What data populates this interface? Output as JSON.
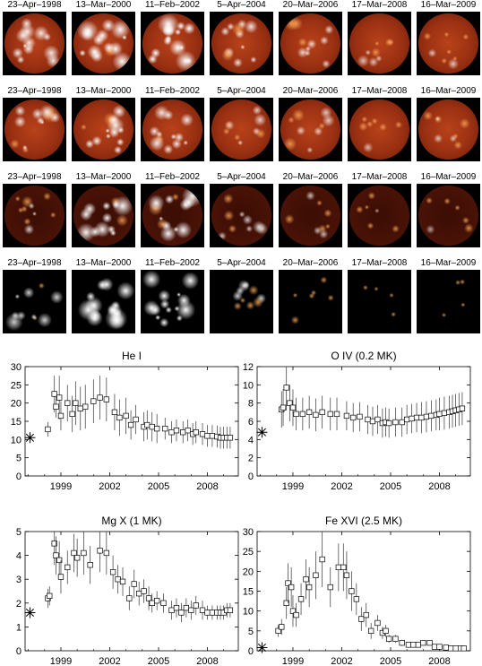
{
  "dates": [
    "23–Apr–1998",
    "13–Mar–2000",
    "11–Feb–2002",
    "5–Apr–2004",
    "20–Mar–2006",
    "17–Mar–2008",
    "16–Mar–2009"
  ],
  "rows": [
    {
      "name": "row-1",
      "style": "disk",
      "activity": [
        0.75,
        0.95,
        1.0,
        0.7,
        0.55,
        0.35,
        0.4
      ]
    },
    {
      "name": "row-2",
      "style": "disk",
      "activity": [
        0.7,
        0.85,
        0.75,
        0.5,
        0.45,
        0.3,
        0.35
      ]
    },
    {
      "name": "row-3",
      "style": "limb",
      "activity": [
        0.55,
        0.9,
        0.9,
        0.45,
        0.4,
        0.2,
        0.2
      ]
    },
    {
      "name": "row-4",
      "style": "corona",
      "activity": [
        0.6,
        0.95,
        0.95,
        0.6,
        0.15,
        0.02,
        0.02
      ]
    }
  ],
  "colors": {
    "hot": "#ffffff",
    "mid": "#d2561c",
    "dark": "#5a1506",
    "bg": "#000000"
  },
  "chart_data": [
    {
      "type": "scatter",
      "title": "He I",
      "xlim": [
        1996.8,
        2009.9
      ],
      "ylim": [
        0,
        30
      ],
      "xticks": [
        1999,
        2002,
        2005,
        2008
      ],
      "yticks": [
        0,
        5,
        10,
        15,
        20,
        25,
        30
      ],
      "reference": {
        "x": 1997.1,
        "y": 10.5
      },
      "points": [
        [
          1998.2,
          12.8,
          2
        ],
        [
          1998.6,
          22.5,
          5
        ],
        [
          1998.7,
          19,
          3
        ],
        [
          1998.9,
          21.5,
          6
        ],
        [
          1999.0,
          16.5,
          4
        ],
        [
          1999.4,
          20,
          5
        ],
        [
          1999.7,
          17,
          5
        ],
        [
          1999.9,
          20,
          6
        ],
        [
          2000.2,
          18.5,
          6
        ],
        [
          2000.5,
          19,
          6
        ],
        [
          2001.0,
          20.5,
          6
        ],
        [
          2001.4,
          21.5,
          6
        ],
        [
          2001.8,
          21,
          6
        ],
        [
          2002.3,
          17.5,
          5
        ],
        [
          2002.6,
          16,
          5
        ],
        [
          2003.0,
          16.5,
          5
        ],
        [
          2003.3,
          14,
          4
        ],
        [
          2003.6,
          15.5,
          4
        ],
        [
          2004.1,
          13.5,
          4
        ],
        [
          2004.3,
          14,
          4
        ],
        [
          2004.6,
          13.5,
          4
        ],
        [
          2004.9,
          13,
          4
        ],
        [
          2005.4,
          13,
          3
        ],
        [
          2005.8,
          12,
          3
        ],
        [
          2006.1,
          12.5,
          3
        ],
        [
          2006.5,
          12,
          3
        ],
        [
          2006.8,
          12.5,
          3
        ],
        [
          2007.1,
          11.5,
          3
        ],
        [
          2007.3,
          12,
          3
        ],
        [
          2007.7,
          11.5,
          3
        ],
        [
          2008.0,
          11,
          3
        ],
        [
          2008.3,
          11,
          3
        ],
        [
          2008.6,
          10.8,
          3
        ],
        [
          2008.8,
          10.5,
          3
        ],
        [
          2009.0,
          10.5,
          3
        ],
        [
          2009.2,
          10.5,
          3
        ],
        [
          2009.4,
          10.5,
          3
        ]
      ]
    },
    {
      "type": "scatter",
      "title": "O IV (0.2 MK)",
      "xlim": [
        1996.8,
        2009.9
      ],
      "ylim": [
        0,
        12
      ],
      "xticks": [
        1999,
        2002,
        2005,
        2008
      ],
      "yticks": [
        0,
        2,
        4,
        6,
        8,
        10,
        12
      ],
      "reference": {
        "x": 1997.1,
        "y": 4.8
      },
      "points": [
        [
          1998.3,
          7.3,
          2
        ],
        [
          1998.4,
          7.5,
          2
        ],
        [
          1998.6,
          9.7,
          2.5
        ],
        [
          1998.8,
          8,
          2
        ],
        [
          1999.0,
          7.5,
          2
        ],
        [
          1999.2,
          6.8,
          1.8
        ],
        [
          1999.6,
          6.8,
          1.8
        ],
        [
          2000.0,
          7,
          1.8
        ],
        [
          2000.4,
          6.7,
          1.8
        ],
        [
          2000.8,
          7,
          1.8
        ],
        [
          2001.3,
          6.8,
          1.8
        ],
        [
          2001.7,
          6.8,
          1.8
        ],
        [
          2002.3,
          6.6,
          1.6
        ],
        [
          2002.7,
          6.4,
          1.6
        ],
        [
          2003.1,
          6.5,
          1.6
        ],
        [
          2003.6,
          6.2,
          1.6
        ],
        [
          2003.9,
          6,
          1.6
        ],
        [
          2004.2,
          6.2,
          1.6
        ],
        [
          2004.5,
          5.8,
          1.6
        ],
        [
          2004.7,
          5.9,
          1.6
        ],
        [
          2004.9,
          5.8,
          1.6
        ],
        [
          2005.3,
          5.9,
          1.6
        ],
        [
          2005.7,
          5.9,
          1.6
        ],
        [
          2006.0,
          6.2,
          1.6
        ],
        [
          2006.3,
          6.3,
          1.6
        ],
        [
          2006.6,
          6.4,
          1.6
        ],
        [
          2006.9,
          6.4,
          1.7
        ],
        [
          2007.2,
          6.5,
          1.7
        ],
        [
          2007.5,
          6.6,
          1.7
        ],
        [
          2007.8,
          6.7,
          1.7
        ],
        [
          2008.0,
          6.8,
          1.8
        ],
        [
          2008.3,
          6.9,
          1.8
        ],
        [
          2008.6,
          7,
          1.8
        ],
        [
          2008.8,
          7.1,
          1.8
        ],
        [
          2009.0,
          7.2,
          1.8
        ],
        [
          2009.2,
          7.3,
          1.8
        ],
        [
          2009.4,
          7.4,
          1.8
        ]
      ]
    },
    {
      "type": "scatter",
      "title": "Mg X (1 MK)",
      "xlim": [
        1996.8,
        2009.9
      ],
      "ylim": [
        0,
        5
      ],
      "xticks": [
        1999,
        2002,
        2005,
        2008
      ],
      "yticks": [
        0,
        1,
        2,
        3,
        4,
        5
      ],
      "reference": {
        "x": 1997.1,
        "y": 1.6
      },
      "points": [
        [
          1998.2,
          2.2,
          0.4
        ],
        [
          1998.3,
          2.3,
          0.4
        ],
        [
          1998.6,
          4.5,
          0.9
        ],
        [
          1998.7,
          4.0,
          0.8
        ],
        [
          1998.9,
          3.8,
          0.8
        ],
        [
          1999.0,
          3.1,
          0.7
        ],
        [
          1999.4,
          3.5,
          0.7
        ],
        [
          1999.8,
          4.1,
          0.8
        ],
        [
          2000.0,
          3.9,
          0.8
        ],
        [
          2000.4,
          4.1,
          0.9
        ],
        [
          2000.8,
          3.6,
          0.8
        ],
        [
          2001.4,
          4.2,
          0.9
        ],
        [
          2001.8,
          4.1,
          0.9
        ],
        [
          2002.2,
          3.3,
          0.7
        ],
        [
          2002.5,
          3.0,
          0.6
        ],
        [
          2002.8,
          2.9,
          0.6
        ],
        [
          2003.2,
          2.2,
          0.5
        ],
        [
          2003.5,
          2.8,
          0.6
        ],
        [
          2003.8,
          2.4,
          0.5
        ],
        [
          2004.1,
          2.5,
          0.5
        ],
        [
          2004.4,
          2.2,
          0.5
        ],
        [
          2004.6,
          2.0,
          0.4
        ],
        [
          2004.9,
          2.1,
          0.4
        ],
        [
          2005.3,
          2.0,
          0.4
        ],
        [
          2005.8,
          1.7,
          0.4
        ],
        [
          2006.1,
          1.8,
          0.4
        ],
        [
          2006.4,
          1.6,
          0.4
        ],
        [
          2006.7,
          1.8,
          0.4
        ],
        [
          2007.0,
          1.7,
          0.4
        ],
        [
          2007.3,
          1.9,
          0.4
        ],
        [
          2007.7,
          1.7,
          0.4
        ],
        [
          2008.0,
          1.6,
          0.3
        ],
        [
          2008.3,
          1.6,
          0.3
        ],
        [
          2008.6,
          1.6,
          0.3
        ],
        [
          2008.8,
          1.6,
          0.3
        ],
        [
          2009.0,
          1.6,
          0.3
        ],
        [
          2009.2,
          1.7,
          0.3
        ],
        [
          2009.4,
          1.7,
          0.3
        ]
      ]
    },
    {
      "type": "scatter",
      "title": "Fe XVI (2.5 MK)",
      "xlim": [
        1996.8,
        2009.9
      ],
      "ylim": [
        0,
        30
      ],
      "xticks": [
        1999,
        2002,
        2005,
        2008
      ],
      "yticks": [
        0,
        5,
        10,
        15,
        20,
        25,
        30
      ],
      "reference": {
        "x": 1997.1,
        "y": 0.8
      },
      "points": [
        [
          1998.1,
          5,
          1.5
        ],
        [
          1998.3,
          6,
          2
        ],
        [
          1998.6,
          12,
          4
        ],
        [
          1998.7,
          17,
          5
        ],
        [
          1998.9,
          16,
          5
        ],
        [
          1999.0,
          10,
          4
        ],
        [
          1999.2,
          9,
          3
        ],
        [
          1999.5,
          13,
          4
        ],
        [
          1999.8,
          18,
          5
        ],
        [
          2000.0,
          16,
          5
        ],
        [
          2000.4,
          19,
          6
        ],
        [
          2000.8,
          23,
          7
        ],
        [
          2001.3,
          16,
          5
        ],
        [
          2001.8,
          21,
          6
        ],
        [
          2002.1,
          21,
          6
        ],
        [
          2002.3,
          19,
          6
        ],
        [
          2002.6,
          15,
          5
        ],
        [
          2002.9,
          13,
          4
        ],
        [
          2003.2,
          8,
          3
        ],
        [
          2003.5,
          9,
          3
        ],
        [
          2003.8,
          5,
          2
        ],
        [
          2004.2,
          7,
          2
        ],
        [
          2004.5,
          4.5,
          1.5
        ],
        [
          2004.7,
          5,
          1.5
        ],
        [
          2004.9,
          3,
          1
        ],
        [
          2005.3,
          3,
          1
        ],
        [
          2005.7,
          2,
          0.8
        ],
        [
          2006.1,
          1.5,
          0.5
        ],
        [
          2006.4,
          1.5,
          0.5
        ],
        [
          2006.7,
          1.5,
          0.5
        ],
        [
          2007.0,
          2,
          0.5
        ],
        [
          2007.4,
          2,
          0.5
        ],
        [
          2007.7,
          1,
          0.3
        ],
        [
          2008.0,
          1,
          0.3
        ],
        [
          2008.4,
          0.8,
          0.3
        ],
        [
          2008.7,
          0.6,
          0.2
        ],
        [
          2009.0,
          0.6,
          0.2
        ],
        [
          2009.3,
          0.6,
          0.2
        ],
        [
          2009.5,
          0.6,
          0.2
        ]
      ]
    }
  ]
}
